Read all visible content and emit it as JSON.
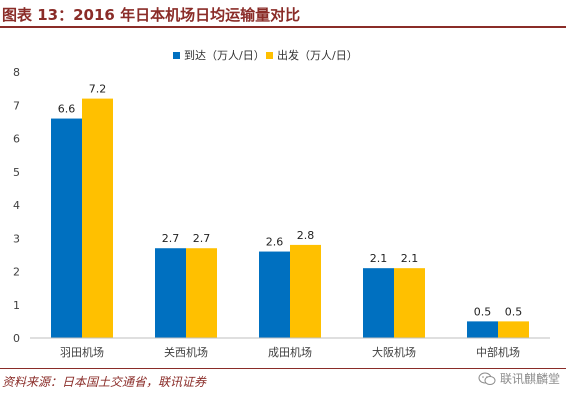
{
  "header": {
    "title": "图表 13：2016 年日本机场日均运输量对比"
  },
  "footer": {
    "source": "资料来源：日本国土交通省，联讯证券",
    "watermark": "联讯麒麟堂",
    "watermark_icon": "wechat-icon"
  },
  "colors": {
    "title": "#8a2c28",
    "series1": "#0070c0",
    "series2": "#ffc000"
  },
  "chart_data": {
    "type": "bar",
    "categories": [
      "羽田机场",
      "关西机场",
      "成田机场",
      "大阪机场",
      "中部机场"
    ],
    "series": [
      {
        "name": "到达（万人/日）",
        "values": [
          6.6,
          2.7,
          2.6,
          2.1,
          0.5
        ],
        "color": "#0070c0"
      },
      {
        "name": "出发（万人/日）",
        "values": [
          7.2,
          2.7,
          2.8,
          2.1,
          0.5
        ],
        "color": "#ffc000"
      }
    ],
    "ylim": [
      0,
      8
    ],
    "yticks": [
      "0",
      "1",
      "2",
      "3",
      "4",
      "5",
      "6",
      "7",
      "8"
    ],
    "grid": false,
    "legend": "top-center",
    "xlabel": "",
    "ylabel": ""
  }
}
